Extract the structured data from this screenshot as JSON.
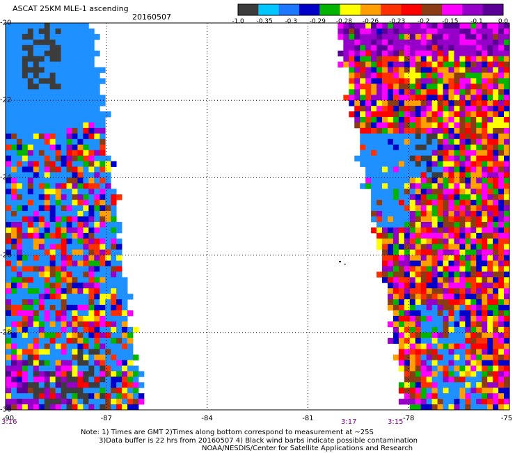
{
  "header": {
    "title": "ASCAT 25KM MLE-1 ascending",
    "date": "20160507"
  },
  "colorbar": {
    "labels": [
      "-1.0",
      "-0.35",
      "-0.3",
      "-0.29",
      "-0.28",
      "-0.26",
      "-0.23",
      "-0.2",
      "-0.15",
      "-0.1",
      "0.0"
    ],
    "colors": [
      "#3c3c3c",
      "#00c8ff",
      "#1e78ff",
      "#0000c8",
      "#00b400",
      "#ffff00",
      "#ffa000",
      "#ff3000",
      "#ff0000",
      "#8c3c14",
      "#ff00ff",
      "#9600c8",
      "#5a0096"
    ]
  },
  "axes": {
    "x_ticks": [
      "-90",
      "-87",
      "-84",
      "-81",
      "-78",
      "-75"
    ],
    "y_ticks": [
      "-20",
      "-22",
      "-24",
      "-26",
      "-28",
      "-30"
    ]
  },
  "pass_times": [
    "3:16",
    "3:17",
    "3:15"
  ],
  "notes": {
    "line1": "Note: 1) Times are GMT 2)Times along bottom correspond to measurement at ~25S",
    "line2": "3)Data buffer is 22 hrs from 20160507 4) Black wind barbs indicate possible contamination",
    "line3": "NOAA/NESDIS/Center for Satellite Applications and Research"
  },
  "chart_data": {
    "type": "heatmap",
    "title": "ASCAT 25KM MLE-1 ascending",
    "date": "20160507",
    "xlabel": "",
    "ylabel": "",
    "xlim": [
      -90,
      -75
    ],
    "ylim": [
      -30,
      -20
    ],
    "grid": true,
    "colorbar_ticks": [
      -1.0,
      -0.35,
      -0.3,
      -0.29,
      -0.28,
      -0.26,
      -0.23,
      -0.2,
      -0.15,
      -0.1,
      0.0
    ]
  }
}
